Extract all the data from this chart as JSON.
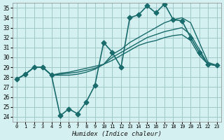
{
  "xlabel": "Humidex (Indice chaleur)",
  "ylabel": "",
  "background_color": "#d4f0f0",
  "grid_color": "#a0c8c8",
  "line_color": "#1a6b6b",
  "xlim": [
    -0.5,
    23.5
  ],
  "ylim": [
    23.5,
    35.5
  ],
  "yticks": [
    24,
    25,
    26,
    27,
    28,
    29,
    30,
    31,
    32,
    33,
    34,
    35
  ],
  "xticks": [
    0,
    1,
    2,
    3,
    4,
    5,
    6,
    7,
    8,
    9,
    10,
    11,
    12,
    13,
    14,
    15,
    16,
    17,
    18,
    19,
    20,
    21,
    22,
    23
  ],
  "series": [
    {
      "x": [
        0,
        1,
        2,
        3,
        4,
        5,
        6,
        7,
        8,
        9,
        10,
        11,
        12,
        13,
        14,
        15,
        16,
        17,
        18,
        19,
        20,
        21,
        22,
        23
      ],
      "y": [
        27.8,
        28.3,
        29.0,
        29.0,
        28.2,
        24.1,
        24.8,
        24.3,
        25.5,
        27.2,
        31.5,
        30.5,
        29.0,
        34.0,
        34.3,
        35.2,
        34.5,
        35.4,
        33.8,
        33.7,
        32.0,
        30.5,
        29.3,
        29.2
      ],
      "marker": "D",
      "markersize": 3.5,
      "linewidth": 1.2
    },
    {
      "x": [
        0,
        1,
        2,
        3,
        4,
        5,
        6,
        7,
        8,
        9,
        10,
        11,
        12,
        13,
        14,
        15,
        16,
        17,
        18,
        19,
        20,
        21,
        22,
        23
      ],
      "y": [
        27.8,
        28.3,
        29.0,
        29.0,
        28.2,
        28.2,
        28.2,
        28.3,
        28.5,
        28.8,
        29.3,
        30.3,
        30.8,
        31.5,
        32.0,
        32.5,
        33.0,
        33.5,
        33.8,
        34.0,
        33.5,
        31.5,
        29.5,
        29.2
      ],
      "marker": null,
      "markersize": 0,
      "linewidth": 1.0
    },
    {
      "x": [
        0,
        1,
        2,
        3,
        4,
        5,
        6,
        7,
        8,
        9,
        10,
        11,
        12,
        13,
        14,
        15,
        16,
        17,
        18,
        19,
        20,
        21,
        22,
        23
      ],
      "y": [
        27.8,
        28.3,
        29.0,
        29.0,
        28.2,
        28.3,
        28.4,
        28.5,
        28.7,
        28.9,
        29.3,
        30.0,
        30.5,
        31.0,
        31.5,
        32.0,
        32.3,
        32.6,
        32.8,
        33.0,
        32.3,
        30.8,
        29.3,
        29.2
      ],
      "marker": null,
      "markersize": 0,
      "linewidth": 1.0
    },
    {
      "x": [
        0,
        1,
        2,
        3,
        4,
        5,
        6,
        7,
        8,
        9,
        10,
        11,
        12,
        13,
        14,
        15,
        16,
        17,
        18,
        19,
        20,
        21,
        22,
        23
      ],
      "y": [
        27.8,
        28.3,
        29.0,
        29.0,
        28.2,
        28.4,
        28.5,
        28.7,
        28.9,
        29.1,
        29.3,
        29.7,
        30.2,
        30.7,
        31.2,
        31.5,
        31.7,
        32.0,
        32.2,
        32.3,
        31.7,
        30.2,
        29.3,
        29.2
      ],
      "marker": null,
      "markersize": 0,
      "linewidth": 1.0
    }
  ]
}
